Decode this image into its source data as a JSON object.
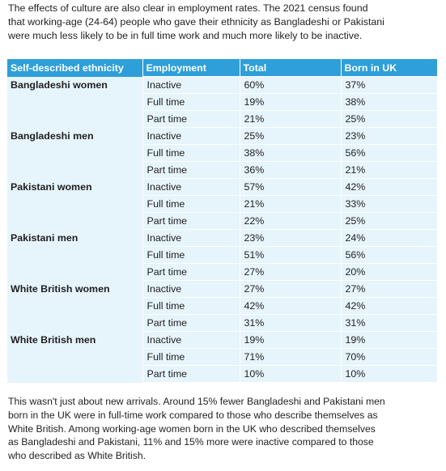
{
  "intro_lines": [
    "The effects of culture are also clear in employment rates. The 2021 census found",
    "that working-age (24-64) people who gave their ethnicity as Bangladeshi or Pakistani",
    "were much less likely to be in full time work and much more likely to be inactive."
  ],
  "table": {
    "headers": [
      "Self-described ethnicity",
      "Employment",
      "Total",
      "Born in UK"
    ],
    "groups": [
      {
        "ethnicity": "Bangladeshi women",
        "rows": [
          {
            "employment": "Inactive",
            "total": "60%",
            "born_uk": "37%"
          },
          {
            "employment": "Full time",
            "total": "19%",
            "born_uk": "38%"
          },
          {
            "employment": "Part time",
            "total": "21%",
            "born_uk": "25%"
          }
        ]
      },
      {
        "ethnicity": "Bangladeshi men",
        "rows": [
          {
            "employment": "Inactive",
            "total": "25%",
            "born_uk": "23%"
          },
          {
            "employment": "Full time",
            "total": "38%",
            "born_uk": "56%"
          },
          {
            "employment": "Part time",
            "total": "36%",
            "born_uk": "21%"
          }
        ]
      },
      {
        "ethnicity": "Pakistani women",
        "rows": [
          {
            "employment": "Inactive",
            "total": "57%",
            "born_uk": "42%"
          },
          {
            "employment": "Full time",
            "total": "21%",
            "born_uk": "33%"
          },
          {
            "employment": "Part time",
            "total": "22%",
            "born_uk": "25%"
          }
        ]
      },
      {
        "ethnicity": "Pakistani men",
        "rows": [
          {
            "employment": "Inactive",
            "total": "23%",
            "born_uk": "24%"
          },
          {
            "employment": "Full time",
            "total": "51%",
            "born_uk": "56%"
          },
          {
            "employment": "Part time",
            "total": "27%",
            "born_uk": "20%"
          }
        ]
      },
      {
        "ethnicity": "White British women",
        "rows": [
          {
            "employment": "Inactive",
            "total": "27%",
            "born_uk": "27%"
          },
          {
            "employment": "Full time",
            "total": "42%",
            "born_uk": "42%"
          },
          {
            "employment": "Part time",
            "total": "31%",
            "born_uk": "31%"
          }
        ]
      },
      {
        "ethnicity": "White British men",
        "rows": [
          {
            "employment": "Inactive",
            "total": "19%",
            "born_uk": "19%"
          },
          {
            "employment": "Full time",
            "total": "71%",
            "born_uk": "70%"
          },
          {
            "employment": "Part time",
            "total": "10%",
            "born_uk": "10%"
          }
        ]
      }
    ]
  },
  "outro_lines": [
    "This wasn't just about new arrivals. Around 15% fewer Bangladeshi and Pakistani men",
    "born in the UK were in full-time work compared to those who describe themselves as",
    "White British. Among working-age women born in the UK who described themselves",
    "as Bangladeshi and Pakistani, 11% and 15% more were inactive compared to those",
    "who described as White British."
  ],
  "colors": {
    "header_bg": "#2e9fd9",
    "table_bg": "#e6f4fb",
    "text": "#1f1f1f"
  }
}
